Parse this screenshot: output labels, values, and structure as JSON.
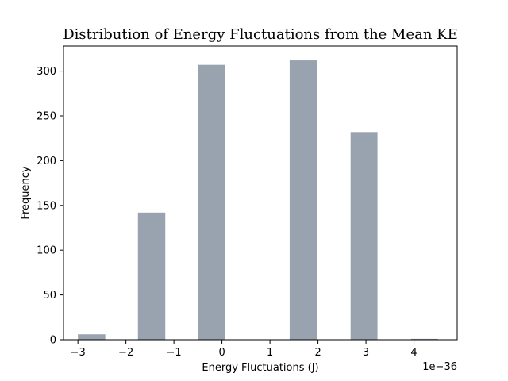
{
  "chart_data": {
    "type": "bar",
    "title": "Distribution of Energy Fluctuations from the Mean KE",
    "xlabel": "Energy Fluctuations (J)",
    "ylabel": "Frequency",
    "x_offset_label": "1e−36",
    "xlim": [
      -3.3,
      4.9
    ],
    "ylim": [
      0,
      328
    ],
    "xticks": [
      -3,
      -2,
      -1,
      0,
      1,
      2,
      3,
      4
    ],
    "xtick_labels": [
      "−3",
      "−2",
      "−1",
      "0",
      "1",
      "2",
      "3",
      "4"
    ],
    "yticks": [
      0,
      50,
      100,
      150,
      200,
      250,
      300
    ],
    "ytick_labels": [
      "0",
      "50",
      "100",
      "150",
      "200",
      "250",
      "300"
    ],
    "bins": [
      {
        "x0": -3.0,
        "x1": -2.43,
        "value": 6
      },
      {
        "x0": -1.75,
        "x1": -1.18,
        "value": 142
      },
      {
        "x0": -0.49,
        "x1": 0.07,
        "value": 307
      },
      {
        "x0": 1.41,
        "x1": 1.98,
        "value": 312
      },
      {
        "x0": 2.68,
        "x1": 3.24,
        "value": 232
      },
      {
        "x0": 3.94,
        "x1": 4.5,
        "value": 1
      }
    ],
    "bar_color": "#708090",
    "grid": false,
    "legend": false
  }
}
